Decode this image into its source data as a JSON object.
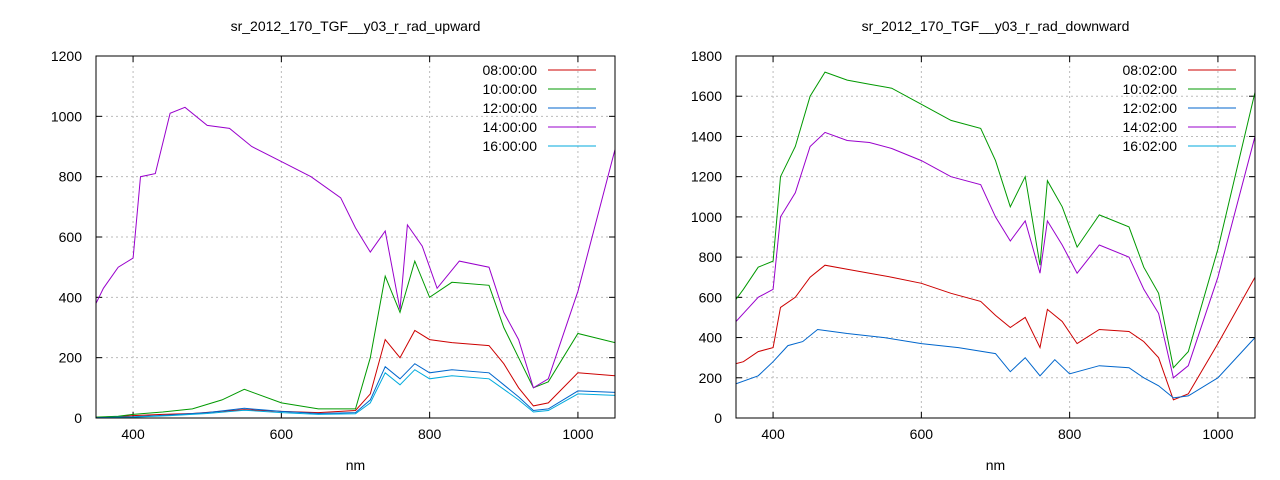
{
  "colors": {
    "08_00": "#cc0000",
    "10_00": "#009900",
    "12_00": "#0066cc",
    "14_00": "#9900cc",
    "16_00": "#00aadd",
    "grid": "#bbbbbb"
  },
  "chart_data": [
    {
      "type": "line",
      "title": "sr_2012_170_TGF__y03_r_rad_upward",
      "xlabel": "nm",
      "ylabel": "",
      "xlim": [
        350,
        1050
      ],
      "ylim": [
        0,
        1200
      ],
      "xticks": [
        400,
        600,
        800,
        1000
      ],
      "yticks": [
        0,
        200,
        400,
        600,
        800,
        1000,
        1200
      ],
      "grid": true,
      "legend_position": "top-right",
      "series": [
        {
          "name": "08:00:00",
          "color": "#cc0000",
          "x": [
            350,
            380,
            400,
            440,
            480,
            550,
            600,
            650,
            700,
            720,
            740,
            760,
            780,
            800,
            830,
            880,
            900,
            920,
            940,
            960,
            1000,
            1050
          ],
          "y": [
            2,
            5,
            8,
            12,
            15,
            28,
            22,
            18,
            25,
            80,
            260,
            200,
            290,
            260,
            250,
            240,
            180,
            100,
            40,
            50,
            150,
            140
          ]
        },
        {
          "name": "10:00:00",
          "color": "#009900",
          "x": [
            350,
            380,
            400,
            440,
            480,
            520,
            550,
            600,
            650,
            700,
            720,
            740,
            760,
            780,
            800,
            830,
            880,
            900,
            920,
            940,
            960,
            1000,
            1050
          ],
          "y": [
            3,
            6,
            12,
            20,
            30,
            60,
            95,
            50,
            30,
            30,
            200,
            470,
            350,
            520,
            400,
            450,
            440,
            300,
            200,
            100,
            120,
            280,
            250
          ]
        },
        {
          "name": "12:00:00",
          "color": "#0066cc",
          "x": [
            350,
            400,
            450,
            500,
            550,
            600,
            650,
            700,
            720,
            740,
            760,
            780,
            800,
            830,
            880,
            900,
            920,
            940,
            960,
            1000,
            1050
          ],
          "y": [
            1,
            4,
            10,
            18,
            32,
            22,
            15,
            18,
            60,
            170,
            130,
            180,
            150,
            160,
            150,
            110,
            70,
            25,
            30,
            90,
            85
          ]
        },
        {
          "name": "14:00:00",
          "color": "#9900cc",
          "x": [
            350,
            360,
            380,
            400,
            410,
            430,
            450,
            470,
            500,
            530,
            560,
            600,
            640,
            680,
            700,
            720,
            740,
            760,
            770,
            790,
            810,
            840,
            880,
            900,
            920,
            940,
            960,
            1000,
            1050
          ],
          "y": [
            380,
            430,
            500,
            530,
            800,
            810,
            1010,
            1030,
            970,
            960,
            900,
            850,
            800,
            730,
            630,
            550,
            620,
            360,
            640,
            570,
            430,
            520,
            500,
            350,
            260,
            100,
            130,
            420,
            890
          ]
        },
        {
          "name": "16:00:00",
          "color": "#00aadd",
          "x": [
            350,
            400,
            450,
            500,
            550,
            600,
            650,
            700,
            720,
            740,
            760,
            780,
            800,
            830,
            880,
            900,
            920,
            940,
            960,
            1000,
            1050
          ],
          "y": [
            1,
            3,
            8,
            15,
            26,
            18,
            12,
            14,
            50,
            150,
            110,
            160,
            130,
            140,
            130,
            95,
            60,
            20,
            25,
            80,
            75
          ]
        }
      ]
    },
    {
      "type": "line",
      "title": "sr_2012_170_TGF__y03_r_rad_downward",
      "xlabel": "nm",
      "ylabel": "",
      "xlim": [
        350,
        1050
      ],
      "ylim": [
        0,
        1800
      ],
      "xticks": [
        400,
        600,
        800,
        1000
      ],
      "yticks": [
        0,
        200,
        400,
        600,
        800,
        1000,
        1200,
        1400,
        1600,
        1800
      ],
      "grid": true,
      "legend_position": "top-right",
      "series": [
        {
          "name": "08:02:00",
          "color": "#cc0000",
          "x": [
            350,
            360,
            380,
            400,
            410,
            430,
            450,
            470,
            500,
            530,
            560,
            600,
            640,
            680,
            700,
            720,
            740,
            760,
            770,
            790,
            810,
            840,
            880,
            900,
            920,
            940,
            960,
            1000,
            1050
          ],
          "y": [
            270,
            280,
            330,
            350,
            550,
            600,
            700,
            760,
            740,
            720,
            700,
            670,
            620,
            580,
            510,
            450,
            500,
            350,
            540,
            480,
            370,
            440,
            430,
            380,
            300,
            90,
            120,
            370,
            700
          ]
        },
        {
          "name": "10:02:00",
          "color": "#009900",
          "x": [
            350,
            360,
            380,
            400,
            410,
            430,
            450,
            470,
            500,
            530,
            560,
            600,
            640,
            680,
            700,
            720,
            740,
            760,
            770,
            790,
            810,
            840,
            880,
            900,
            920,
            940,
            960,
            1000,
            1050
          ],
          "y": [
            590,
            640,
            750,
            780,
            1200,
            1350,
            1600,
            1720,
            1680,
            1660,
            1640,
            1560,
            1480,
            1440,
            1280,
            1050,
            1200,
            760,
            1180,
            1050,
            850,
            1010,
            950,
            750,
            620,
            250,
            330,
            840,
            1620
          ]
        },
        {
          "name": "12:02:00",
          "color": "#0066cc",
          "x": [
            350,
            380,
            400,
            420,
            440,
            460,
            480,
            500,
            550,
            600,
            650,
            700,
            720,
            740,
            760,
            780,
            800,
            840,
            880,
            900,
            920,
            940,
            960,
            1000,
            1050
          ],
          "y": [
            170,
            210,
            280,
            360,
            380,
            440,
            430,
            420,
            400,
            370,
            350,
            320,
            230,
            300,
            210,
            290,
            220,
            260,
            250,
            200,
            160,
            100,
            110,
            200,
            400
          ]
        },
        {
          "name": "14:02:00",
          "color": "#9900cc",
          "x": [
            350,
            360,
            380,
            400,
            410,
            430,
            450,
            470,
            500,
            530,
            560,
            600,
            640,
            680,
            700,
            720,
            740,
            760,
            770,
            790,
            810,
            840,
            880,
            900,
            920,
            940,
            960,
            1000,
            1050
          ],
          "y": [
            480,
            520,
            600,
            640,
            1000,
            1120,
            1350,
            1420,
            1380,
            1370,
            1340,
            1280,
            1200,
            1160,
            1000,
            880,
            980,
            720,
            980,
            860,
            720,
            860,
            800,
            640,
            520,
            200,
            260,
            700,
            1400
          ]
        },
        {
          "name": "16:02:00",
          "color": "#00aadd",
          "x": [
            350,
            400,
            450,
            500,
            550,
            600,
            650,
            700,
            750,
            800,
            850,
            900,
            950,
            1000,
            1050
          ],
          "y": [
            0,
            0,
            0,
            0,
            0,
            0,
            0,
            0,
            0,
            0,
            0,
            0,
            0,
            0,
            0
          ]
        }
      ]
    }
  ]
}
